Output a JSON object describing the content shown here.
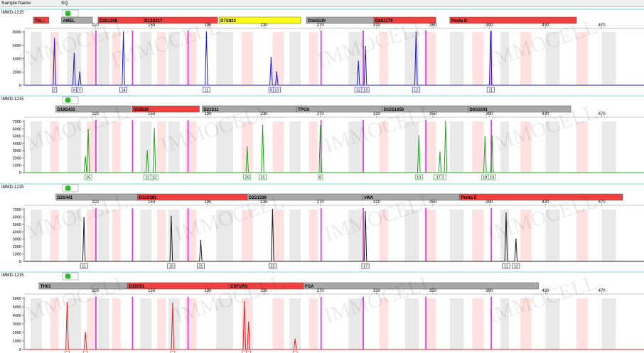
{
  "header": {
    "col_sample": "Sample Name",
    "col_sq": "SQ"
  },
  "watermark": "IMMOCELL",
  "colors": {
    "selected_marker": "#f04040",
    "unselected_marker": "#a8a8a8",
    "amel_marker": "#ffff1a",
    "bin_gray": "#cfcfcf",
    "bin_pink": "#ffc8c8",
    "lane_line": "#e040e0",
    "play_green": "#2db52d"
  },
  "chart_data": [
    {
      "type": "line",
      "sample": "IMMD-1215",
      "color": "#1a1acc",
      "xlim": [
        60,
        500
      ],
      "ylim": [
        0,
        8000
      ],
      "x_ticks": [
        110,
        150,
        190,
        230,
        270,
        310,
        350,
        390,
        430,
        470
      ],
      "y_ticks": [
        0,
        2000,
        4000,
        6000,
        8000
      ],
      "markers": [
        {
          "name": "Tio...",
          "start": 66,
          "end": 77,
          "selected": true
        },
        {
          "name": "AMEL",
          "start": 86,
          "end": 108,
          "selected": false
        },
        {
          "name": "D3S1358",
          "start": 112,
          "end": 144,
          "selected": true
        },
        {
          "name": "D13S317",
          "start": 144,
          "end": 197,
          "selected": true
        },
        {
          "name": "D7S820",
          "start": 198,
          "end": 256,
          "selected": false,
          "amel": true
        },
        {
          "name": "D16S539",
          "start": 260,
          "end": 308,
          "selected": false
        },
        {
          "name": "D8S1179",
          "start": 308,
          "end": 352,
          "selected": true
        },
        {
          "name": "Penta D",
          "start": 362,
          "end": 452,
          "selected": true
        }
      ],
      "peaks": [
        [
          81,
          7000
        ],
        [
          95,
          4800
        ],
        [
          99,
          2000
        ],
        [
          130,
          8200
        ],
        [
          189,
          8000
        ],
        [
          235,
          4200
        ],
        [
          239,
          2000
        ],
        [
          297,
          3600
        ],
        [
          302,
          5800
        ],
        [
          338,
          8200
        ],
        [
          391,
          8200
        ]
      ],
      "calls": [
        {
          "x": 81,
          "label": "2"
        },
        {
          "x": 95,
          "label": "X"
        },
        {
          "x": 99,
          "label": "Y"
        },
        {
          "x": 130,
          "label": "14"
        },
        {
          "x": 189,
          "label": "11"
        },
        {
          "x": 235,
          "label": "9"
        },
        {
          "x": 239,
          "label": "10"
        },
        {
          "x": 297,
          "label": "12"
        },
        {
          "x": 302,
          "label": "13"
        },
        {
          "x": 338,
          "label": "12"
        },
        {
          "x": 391,
          "label": "11"
        }
      ]
    },
    {
      "type": "line",
      "sample": "IMMD-1215",
      "color": "#20a020",
      "xlim": [
        60,
        500
      ],
      "ylim": [
        0,
        7000
      ],
      "x_ticks": [
        110,
        150,
        190,
        230,
        270,
        310,
        350,
        390,
        430,
        470
      ],
      "y_ticks": [
        0,
        1000,
        2000,
        3000,
        4000,
        5000,
        6000,
        7000
      ],
      "markers": [
        {
          "name": "D19S433",
          "start": 82,
          "end": 135,
          "selected": false
        },
        {
          "name": "D5S818",
          "start": 136,
          "end": 184,
          "selected": true
        },
        {
          "name": "D21S11",
          "start": 186,
          "end": 253,
          "selected": false
        },
        {
          "name": "TPOX",
          "start": 253,
          "end": 314,
          "selected": false
        },
        {
          "name": "D15S1656",
          "start": 314,
          "end": 375,
          "selected": false
        },
        {
          "name": "D6S1043",
          "start": 375,
          "end": 448,
          "selected": false
        }
      ],
      "peaks": [
        [
          103,
          2200
        ],
        [
          105,
          5900
        ],
        [
          147,
          3000
        ],
        [
          152,
          6000
        ],
        [
          218,
          3500
        ],
        [
          229,
          6500
        ],
        [
          270,
          6400
        ],
        [
          340,
          5000
        ],
        [
          355,
          2800
        ],
        [
          359,
          7000
        ],
        [
          387,
          4900
        ],
        [
          392,
          5000
        ]
      ],
      "calls": [
        {
          "x": 105,
          "label": "15"
        },
        {
          "x": 147,
          "label": "11"
        },
        {
          "x": 152,
          "label": "12"
        },
        {
          "x": 218,
          "label": "29"
        },
        {
          "x": 229,
          "label": "31"
        },
        {
          "x": 270,
          "label": "8"
        },
        {
          "x": 340,
          "label": "13"
        },
        {
          "x": 355,
          "label": "17.3"
        },
        {
          "x": 387,
          "label": "18"
        },
        {
          "x": 392,
          "label": "19"
        }
      ]
    },
    {
      "type": "line",
      "sample": "IMMD-1215",
      "color": "#1a1a1a",
      "xlim": [
        60,
        500
      ],
      "ylim": [
        0,
        7000
      ],
      "x_ticks": [
        110,
        150,
        190,
        230,
        270,
        310,
        350,
        390,
        430,
        470
      ],
      "y_ticks": [
        0,
        1000,
        2000,
        3000,
        4000,
        5000,
        6000,
        7000
      ],
      "markers": [
        {
          "name": "D2S441",
          "start": 82,
          "end": 140,
          "selected": false
        },
        {
          "name": "D12S391",
          "start": 140,
          "end": 218,
          "selected": true
        },
        {
          "name": "D2S1338",
          "start": 218,
          "end": 300,
          "selected": false
        },
        {
          "name": "vWA",
          "start": 300,
          "end": 369,
          "selected": false
        },
        {
          "name": "Penta E",
          "start": 369,
          "end": 490,
          "selected": true
        }
      ],
      "peaks": [
        [
          102,
          5900
        ],
        [
          164,
          6100
        ],
        [
          185,
          2800
        ],
        [
          236,
          7000
        ],
        [
          302,
          6700
        ],
        [
          402,
          6500
        ],
        [
          409,
          3000
        ]
      ],
      "calls": [
        {
          "x": 102,
          "label": "11"
        },
        {
          "x": 164,
          "label": "19"
        },
        {
          "x": 185,
          "label": "21"
        },
        {
          "x": 236,
          "label": "22"
        },
        {
          "x": 302,
          "label": "17"
        },
        {
          "x": 402,
          "label": "11"
        },
        {
          "x": 409,
          "label": "12"
        }
      ]
    },
    {
      "type": "line",
      "sample": "IMMD-1215",
      "color": "#dd2020",
      "xlim": [
        60,
        500
      ],
      "ylim": [
        0,
        6000
      ],
      "x_ticks": [
        110,
        150,
        190,
        230,
        270,
        310,
        350,
        390,
        430,
        470
      ],
      "y_ticks": [
        0,
        1000,
        2000,
        3000,
        4000,
        5000,
        6000
      ],
      "markers": [
        {
          "name": "TH01",
          "start": 70,
          "end": 133,
          "selected": false
        },
        {
          "name": "D18S51",
          "start": 133,
          "end": 205,
          "selected": true
        },
        {
          "name": "CSF1PO",
          "start": 205,
          "end": 258,
          "selected": true
        },
        {
          "name": "FGA",
          "start": 258,
          "end": 425,
          "selected": false
        }
      ],
      "peaks": [
        [
          90,
          5500
        ],
        [
          103,
          2000
        ],
        [
          165,
          5400
        ],
        [
          216,
          5600
        ],
        [
          219,
          3200
        ],
        [
          252,
          1200
        ]
      ],
      "calls": [
        {
          "x": 90,
          "label": ""
        },
        {
          "x": 103,
          "label": ""
        },
        {
          "x": 165,
          "label": ""
        },
        {
          "x": 216,
          "label": ""
        },
        {
          "x": 219,
          "label": ""
        },
        {
          "x": 252,
          "label": ""
        }
      ]
    }
  ]
}
